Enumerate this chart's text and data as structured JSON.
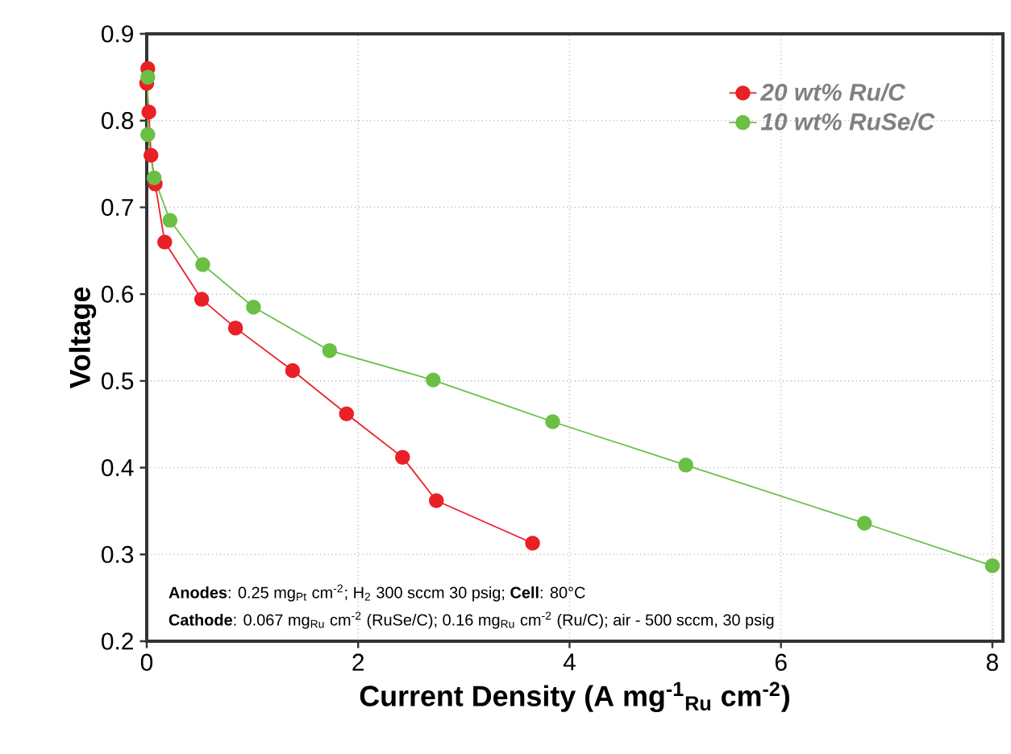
{
  "chart_data": {
    "type": "line",
    "xlabel": "Current Density (A mg$^{-1}$$_{Ru}$ cm$^{-2}$)",
    "ylabel": "Voltage",
    "xlim": [
      0,
      8.1
    ],
    "ylim": [
      0.2,
      0.9
    ],
    "xticks": [
      0,
      2,
      4,
      6,
      8
    ],
    "yticks": [
      0.2,
      0.3,
      0.4,
      0.5,
      0.6,
      0.7,
      0.8,
      0.9
    ],
    "grid": true,
    "legend": "top right",
    "marker": "circle",
    "line_style": "solid",
    "series": [
      {
        "name": "20 wt% Ru/C",
        "color": "#ea2027",
        "x": [
          0.01,
          0.0,
          0.02,
          0.04,
          0.08,
          0.17,
          0.52,
          0.84,
          1.38,
          1.89,
          2.42,
          2.74,
          3.65
        ],
        "values": [
          0.86,
          0.843,
          0.81,
          0.76,
          0.727,
          0.66,
          0.594,
          0.561,
          0.512,
          0.462,
          0.412,
          0.362,
          0.313
        ]
      },
      {
        "name": "10 wt% RuSe/C",
        "color": "#6abf45",
        "x": [
          0.01,
          0.01,
          0.07,
          0.22,
          0.53,
          1.01,
          1.73,
          2.71,
          3.84,
          5.1,
          6.79,
          8.0
        ],
        "values": [
          0.85,
          0.784,
          0.734,
          0.685,
          0.634,
          0.585,
          0.535,
          0.501,
          0.453,
          0.403,
          0.336,
          0.287
        ]
      }
    ],
    "annotations": [
      "**Anodes**: 0.25 mg$_{Pt}$ cm$^{-2}$; H$_{2}$ 300 sccm 30 psig;  **Cell**: 80°C",
      "**Cathode**:  0.067 mg$_{Ru}$ cm$^{-2}$ (RuSe/C); 0.16 mg$_{Ru}$ cm$^{-2}$ (Ru/C); air - 500 sccm, 30 psig"
    ]
  }
}
